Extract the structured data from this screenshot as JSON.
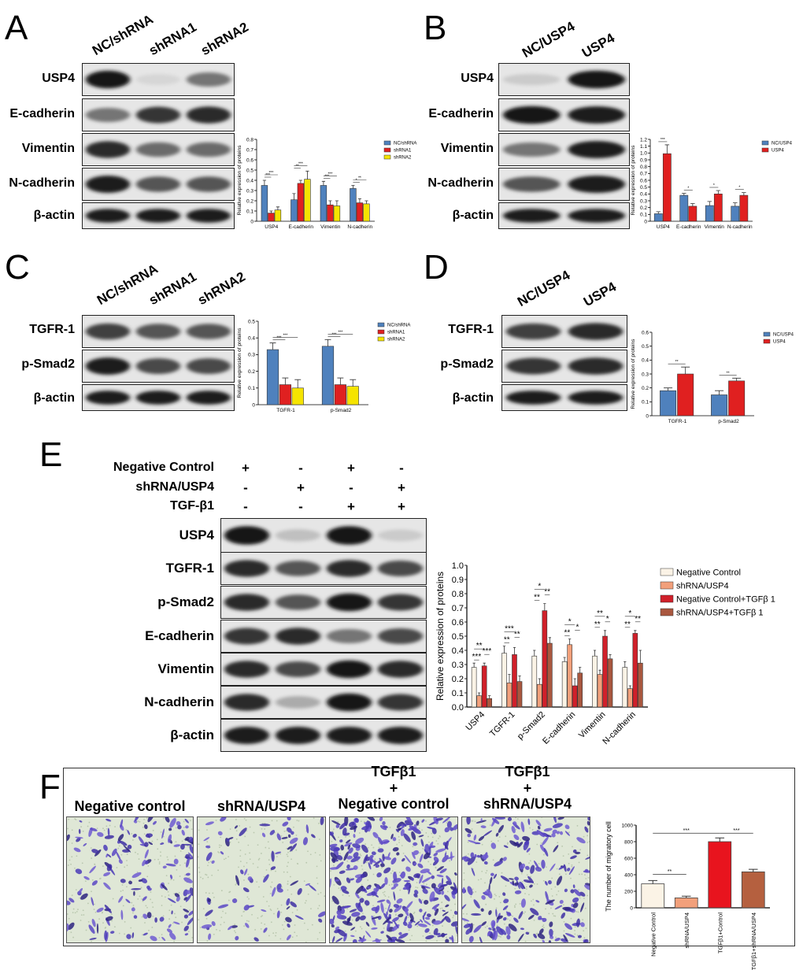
{
  "panels": {
    "A": {
      "letter": "A",
      "lanes": [
        "NC/shRNA",
        "shRNA1",
        "shRNA2"
      ],
      "rows": [
        "USP4",
        "E-cadherin",
        "Vimentin",
        "N-cadherin",
        "β-actin"
      ]
    },
    "B": {
      "letter": "B",
      "lanes": [
        "NC/USP4",
        "USP4"
      ],
      "rows": [
        "USP4",
        "E-cadherin",
        "Vimentin",
        "N-cadherin",
        "β-actin"
      ]
    },
    "C": {
      "letter": "C",
      "lanes": [
        "NC/shRNA",
        "shRNA1",
        "shRNA2"
      ],
      "rows": [
        "TGFR-1",
        "p-Smad2",
        "β-actin"
      ]
    },
    "D": {
      "letter": "D",
      "lanes": [
        "NC/USP4",
        "USP4"
      ],
      "rows": [
        "TGFR-1",
        "p-Smad2",
        "β-actin"
      ]
    },
    "E": {
      "letter": "E",
      "conditions": [
        {
          "label": "Negative Control",
          "signs": [
            "+",
            "-",
            "+",
            "-"
          ]
        },
        {
          "label": "shRNA/USP4",
          "signs": [
            "-",
            "+",
            "-",
            "+"
          ]
        },
        {
          "label": "TGF-β1",
          "signs": [
            "-",
            "-",
            "+",
            "+"
          ]
        }
      ],
      "rows": [
        "USP4",
        "TGFR-1",
        "p-Smad2",
        "E-cadherin",
        "Vimentin",
        "N-cadherin",
        "β-actin"
      ]
    },
    "F": {
      "letter": "F",
      "titles": [
        {
          "line1": "",
          "line2": "",
          "line3": "Negative control"
        },
        {
          "line1": "",
          "line2": "",
          "line3": "shRNA/USP4"
        },
        {
          "line1": "TGFβ1",
          "line2": "+",
          "line3": "Negative control"
        },
        {
          "line1": "TGFβ1",
          "line2": "+",
          "line3": "shRNA/USP4"
        }
      ]
    }
  },
  "chart_data": [
    {
      "panel": "A",
      "type": "bar",
      "ylabel": "Relative expression of proteins",
      "ylim": [
        0,
        0.8
      ],
      "yticks": [
        "0",
        "0.1",
        "0.2",
        "0.3",
        "0.4",
        "0.5",
        "0.6",
        "0.7",
        "0.8"
      ],
      "categories": [
        "USP4",
        "E-cadherin",
        "Vimentin",
        "N-cadherin"
      ],
      "legend_position": "top-right",
      "series": [
        {
          "name": "NC/shRNA",
          "color": "#4f81bd",
          "values": [
            0.35,
            0.21,
            0.35,
            0.32
          ],
          "errors": [
            0.05,
            0.06,
            0.04,
            0.03
          ]
        },
        {
          "name": "shRNA1",
          "color": "#e02020",
          "values": [
            0.08,
            0.37,
            0.16,
            0.18
          ],
          "errors": [
            0.02,
            0.03,
            0.04,
            0.04
          ]
        },
        {
          "name": "shRNA2",
          "color": "#f5e400",
          "values": [
            0.11,
            0.41,
            0.15,
            0.17
          ],
          "errors": [
            0.03,
            0.08,
            0.05,
            0.03
          ]
        }
      ],
      "significance": [
        "***",
        "***",
        "**",
        "***",
        "***",
        "***",
        "*",
        "**"
      ]
    },
    {
      "panel": "B",
      "type": "bar",
      "ylabel": "Relative expression of proteins",
      "ylim": [
        0,
        1.2
      ],
      "yticks": [
        "0",
        "0.1",
        "0.2",
        "0.3",
        "0.4",
        "0.5",
        "0.6",
        "0.7",
        "0.8",
        "0.9",
        "1.0",
        "1.1",
        "1.2"
      ],
      "categories": [
        "USP4",
        "E-cadherin",
        "Vimentin",
        "N-cadherin"
      ],
      "legend_position": "top-right",
      "series": [
        {
          "name": "NC/USP4",
          "color": "#4f81bd",
          "values": [
            0.11,
            0.38,
            0.23,
            0.22
          ],
          "errors": [
            0.03,
            0.03,
            0.06,
            0.05
          ]
        },
        {
          "name": "USP4",
          "color": "#e02020",
          "values": [
            0.99,
            0.22,
            0.4,
            0.38
          ],
          "errors": [
            0.13,
            0.04,
            0.05,
            0.04
          ]
        }
      ],
      "significance": [
        "***",
        "*",
        "*",
        "*"
      ]
    },
    {
      "panel": "C",
      "type": "bar",
      "ylabel": "Relative expression of proteins",
      "ylim": [
        0,
        0.5
      ],
      "yticks": [
        "0",
        "0.1",
        "0.2",
        "0.3",
        "0.4",
        "0.5"
      ],
      "categories": [
        "TGFR-1",
        "p-Smad2"
      ],
      "legend_position": "top-right",
      "series": [
        {
          "name": "NC/shRNA",
          "color": "#4f81bd",
          "values": [
            0.33,
            0.35
          ],
          "errors": [
            0.04,
            0.04
          ]
        },
        {
          "name": "shRNA1",
          "color": "#e02020",
          "values": [
            0.12,
            0.12
          ],
          "errors": [
            0.04,
            0.04
          ]
        },
        {
          "name": "shRNA2",
          "color": "#f5e400",
          "values": [
            0.1,
            0.11
          ],
          "errors": [
            0.05,
            0.04
          ]
        }
      ],
      "significance": [
        "***",
        "***",
        "***",
        "***"
      ]
    },
    {
      "panel": "D",
      "type": "bar",
      "ylabel": "Relative expression of proteins",
      "ylim": [
        0,
        0.6
      ],
      "yticks": [
        "0",
        "0.1",
        "0.2",
        "0.3",
        "0.4",
        "0.5",
        "0.6"
      ],
      "categories": [
        "TGFR-1",
        "p-Smad2"
      ],
      "legend_position": "top-right",
      "series": [
        {
          "name": "NC/USP4",
          "color": "#4f81bd",
          "values": [
            0.18,
            0.15
          ],
          "errors": [
            0.02,
            0.03
          ]
        },
        {
          "name": "USP4",
          "color": "#e02020",
          "values": [
            0.3,
            0.25
          ],
          "errors": [
            0.05,
            0.02
          ]
        }
      ],
      "significance": [
        "**",
        "**"
      ]
    },
    {
      "panel": "E",
      "type": "bar",
      "ylabel": "Relative expression of proteins",
      "ylim": [
        0,
        1.0
      ],
      "yticks": [
        "0.0",
        "0.1",
        "0.2",
        "0.3",
        "0.4",
        "0.5",
        "0.6",
        "0.7",
        "0.8",
        "0.9",
        "1.0"
      ],
      "categories": [
        "USP4",
        "TGFR-1",
        "p-Smad2",
        "E-cadherin",
        "Vimentin",
        "N-cadherin"
      ],
      "legend_position": "top-right",
      "series": [
        {
          "name": "Negative Control",
          "color": "#fbf3e6",
          "values": [
            0.28,
            0.38,
            0.36,
            0.32,
            0.36,
            0.28
          ],
          "errors": [
            0.03,
            0.05,
            0.04,
            0.03,
            0.04,
            0.04
          ]
        },
        {
          "name": "shRNA/USP4",
          "color": "#f2a07b",
          "values": [
            0.08,
            0.17,
            0.16,
            0.44,
            0.23,
            0.13
          ],
          "errors": [
            0.02,
            0.06,
            0.04,
            0.04,
            0.03,
            0.02
          ]
        },
        {
          "name": "Negative Control+TGFβ 1",
          "color": "#d0202a",
          "values": [
            0.29,
            0.37,
            0.68,
            0.15,
            0.5,
            0.52
          ],
          "errors": [
            0.02,
            0.05,
            0.05,
            0.05,
            0.04,
            0.02
          ]
        },
        {
          "name": "shRNA/USP4+TGFβ 1",
          "color": "#a9573f",
          "values": [
            0.06,
            0.18,
            0.45,
            0.24,
            0.34,
            0.31
          ],
          "errors": [
            0.02,
            0.04,
            0.04,
            0.04,
            0.03,
            0.09
          ]
        }
      ],
      "significance": [
        "***",
        "***",
        "**",
        "**",
        "**",
        "***",
        "**",
        "**",
        "*",
        "**",
        "*",
        "*",
        "**",
        "*",
        "**",
        "**",
        "**",
        "*"
      ]
    },
    {
      "panel": "F",
      "type": "bar",
      "ylabel": "The number of migratory cell",
      "ylim": [
        0,
        1000
      ],
      "yticks": [
        "0",
        "200",
        "400",
        "600",
        "800",
        "1000"
      ],
      "categories": [
        "Negative Control",
        "shRNA/USP4",
        "TGFβ1+Control",
        "TGFβ1+shRNA/USP4"
      ],
      "colors": [
        "#fbf3e6",
        "#f2a07b",
        "#e8141e",
        "#b5603f"
      ],
      "values": [
        290,
        120,
        800,
        435
      ],
      "errors": [
        40,
        20,
        45,
        30
      ],
      "significance": [
        "**",
        "***",
        "***"
      ]
    }
  ]
}
